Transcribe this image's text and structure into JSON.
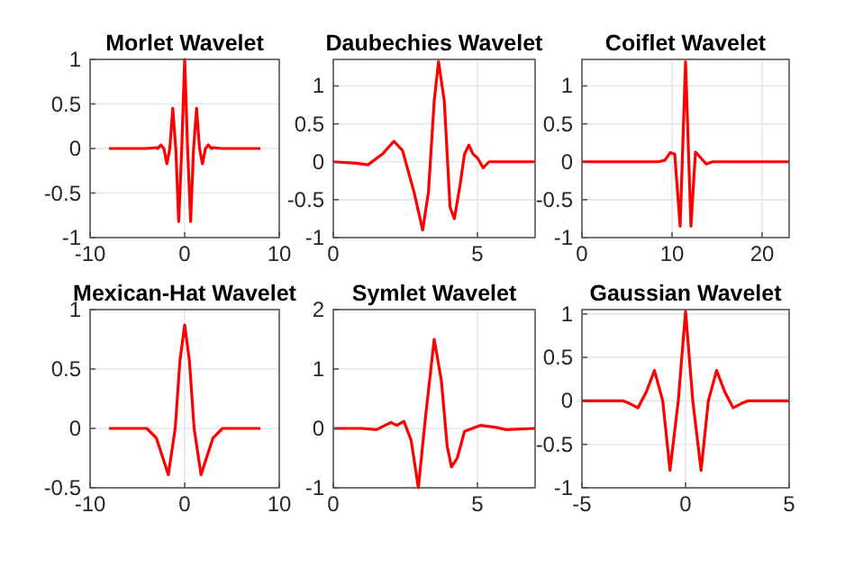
{
  "chart_data": [
    {
      "type": "line",
      "title": "Morlet Wavelet",
      "xlim": [
        -10,
        10
      ],
      "ylim": [
        -1,
        1
      ],
      "xticks": [
        -10,
        0,
        10
      ],
      "yticks": [
        -1,
        -0.5,
        0,
        0.5,
        1
      ],
      "grid": true,
      "x": [
        -8,
        -4,
        -3,
        -2.83,
        -2.51,
        -2.2,
        -1.88,
        -1.57,
        -1.26,
        -0.94,
        -0.63,
        -0.31,
        0,
        0.31,
        0.63,
        0.94,
        1.26,
        1.57,
        1.88,
        2.2,
        2.51,
        2.83,
        3,
        4,
        8
      ],
      "series": [
        {
          "color": "#ff0000",
          "values": [
            0,
            0,
            0.01,
            0,
            0.04,
            0,
            -0.17,
            0,
            0.45,
            0,
            -0.82,
            0,
            1,
            0,
            -0.82,
            0,
            0.45,
            0,
            -0.17,
            0,
            0.04,
            0,
            0.01,
            0,
            0
          ]
        }
      ]
    },
    {
      "type": "line",
      "title": "Daubechies Wavelet",
      "xlim": [
        0,
        7
      ],
      "ylim": [
        -1,
        1.35
      ],
      "xticks": [
        0,
        5
      ],
      "yticks": [
        -1,
        -0.5,
        0,
        0.5,
        1
      ],
      "grid": true,
      "x": [
        0,
        0.8,
        1.2,
        1.7,
        2.1,
        2.4,
        2.8,
        3.1,
        3.3,
        3.5,
        3.65,
        3.85,
        4.05,
        4.2,
        4.4,
        4.55,
        4.7,
        4.85,
        5.0,
        5.2,
        5.4,
        7
      ],
      "series": [
        {
          "color": "#ff0000",
          "values": [
            0,
            -0.02,
            -0.04,
            0.1,
            0.27,
            0.15,
            -0.4,
            -0.9,
            -0.4,
            0.8,
            1.32,
            0.8,
            -0.6,
            -0.75,
            -0.3,
            0.1,
            0.22,
            0.1,
            0.05,
            -0.08,
            0,
            0
          ]
        }
      ]
    },
    {
      "type": "line",
      "title": "Coiflet Wavelet",
      "xlim": [
        0,
        23
      ],
      "ylim": [
        -1,
        1.35
      ],
      "xticks": [
        0,
        10,
        20
      ],
      "yticks": [
        -1,
        -0.5,
        0,
        0.5,
        1
      ],
      "grid": true,
      "x": [
        0,
        8.5,
        9.2,
        9.8,
        10.3,
        10.9,
        11.5,
        12.1,
        12.6,
        13.2,
        13.8,
        14.5,
        23
      ],
      "series": [
        {
          "color": "#ff0000",
          "values": [
            0,
            0,
            0.02,
            0.12,
            0.1,
            -0.85,
            1.32,
            -0.85,
            0.13,
            0.05,
            -0.03,
            0,
            0
          ]
        }
      ]
    },
    {
      "type": "line",
      "title": "Mexican-Hat Wavelet",
      "xlim": [
        -10,
        10
      ],
      "ylim": [
        -0.5,
        1
      ],
      "xticks": [
        -10,
        0,
        10
      ],
      "yticks": [
        -0.5,
        0,
        0.5,
        1
      ],
      "grid": true,
      "x": [
        -8,
        -4,
        -3,
        -2.5,
        -1.73,
        -1,
        -0.5,
        0,
        0.5,
        1,
        1.73,
        2.5,
        3,
        4,
        8
      ],
      "series": [
        {
          "color": "#ff0000",
          "values": [
            0,
            0,
            -0.08,
            -0.2,
            -0.39,
            0,
            0.57,
            0.87,
            0.57,
            0,
            -0.39,
            -0.2,
            -0.08,
            0,
            0
          ]
        }
      ]
    },
    {
      "type": "line",
      "title": "Symlet Wavelet",
      "xlim": [
        0,
        7
      ],
      "ylim": [
        -1,
        2
      ],
      "xticks": [
        0,
        5
      ],
      "yticks": [
        -1,
        0,
        1,
        2
      ],
      "grid": true,
      "x": [
        0,
        1,
        1.5,
        2,
        2.2,
        2.45,
        2.7,
        2.95,
        3.2,
        3.5,
        3.75,
        3.95,
        4.1,
        4.3,
        4.55,
        5.1,
        5.6,
        6,
        7
      ],
      "series": [
        {
          "color": "#ff0000",
          "values": [
            0,
            0,
            -0.02,
            0.1,
            0.05,
            0.12,
            -0.2,
            -1,
            0.2,
            1.5,
            0.8,
            -0.3,
            -0.65,
            -0.5,
            -0.05,
            0.05,
            0.02,
            -0.02,
            0
          ]
        }
      ]
    },
    {
      "type": "line",
      "title": "Gaussian Wavelet",
      "xlim": [
        -5,
        5
      ],
      "ylim": [
        -1,
        1.05
      ],
      "xticks": [
        -5,
        0,
        5
      ],
      "yticks": [
        -1,
        -0.5,
        0,
        0.5,
        1
      ],
      "grid": true,
      "x": [
        -5,
        -3,
        -2.7,
        -2.3,
        -1.9,
        -1.5,
        -1.1,
        -0.75,
        -0.35,
        0,
        0.35,
        0.75,
        1.1,
        1.5,
        1.9,
        2.3,
        2.7,
        3,
        5
      ],
      "series": [
        {
          "color": "#ff0000",
          "values": [
            0,
            0,
            -0.03,
            -0.08,
            0.1,
            0.35,
            0,
            -0.8,
            0,
            1.03,
            0,
            -0.8,
            0,
            0.35,
            0.1,
            -0.08,
            -0.03,
            0,
            0
          ]
        }
      ]
    }
  ]
}
